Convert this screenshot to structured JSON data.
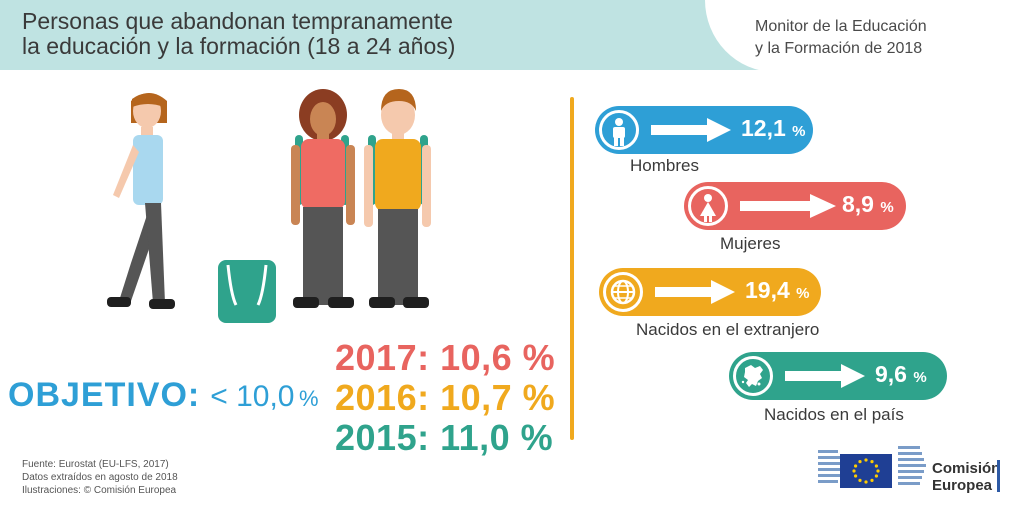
{
  "header": {
    "title_line1": "Personas que abandonan tempranamente",
    "title_line2": "la educación y la formación (18 a 24 años)",
    "source_line1": "Monitor de la Educación",
    "source_line2": "y la Formación de 2018"
  },
  "objective": {
    "label": "OBJETIVO:",
    "value": "< 10,0",
    "unit": "%"
  },
  "years": [
    {
      "text": "2017: 10,6 %",
      "color": "#e8645f"
    },
    {
      "text": "2016: 10,7 %",
      "color": "#f0a91e"
    },
    {
      "text": "2015: 11,0 %",
      "color": "#2fa38c"
    }
  ],
  "indicators": [
    {
      "label": "Hombres",
      "value": "12,1",
      "unit": "%",
      "color": "#2e9fd6",
      "icon": "man-icon"
    },
    {
      "label": "Mujeres",
      "value": "8,9",
      "unit": "%",
      "color": "#e8645f",
      "icon": "woman-icon"
    },
    {
      "label": "Nacidos en el extranjero",
      "value": "19,4",
      "unit": "%",
      "color": "#f0a91e",
      "icon": "globe-icon"
    },
    {
      "label": "Nacidos en el país",
      "value": "9,6",
      "unit": "%",
      "color": "#2fa38c",
      "icon": "europe-map-icon"
    }
  ],
  "footer": {
    "line1": "Fuente: Eurostat (EU-LFS, 2017)",
    "line2": "Datos extraídos en agosto de 2018",
    "line3": "Ilustraciones: © Comisión Europea"
  },
  "logo": {
    "line1": "Comisión",
    "line2": "Europea"
  }
}
